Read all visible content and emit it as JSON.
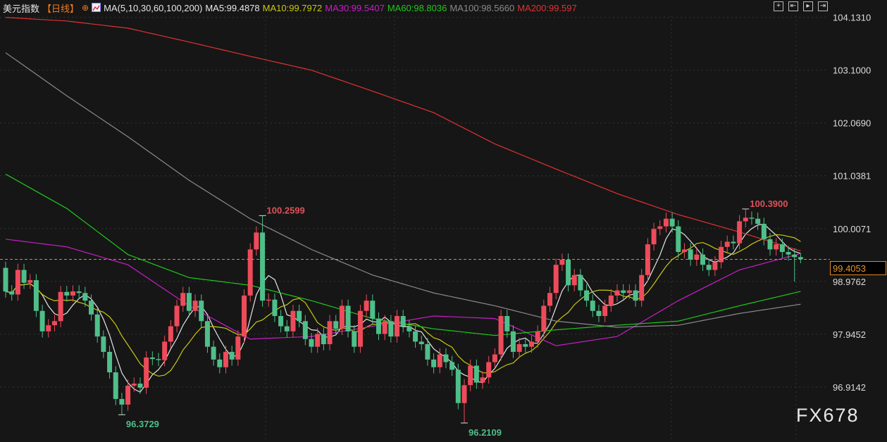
{
  "header": {
    "title": "美元指数",
    "period": "【日线】",
    "ma_group": "MA(5,10,30,60,100,200)",
    "ma_values": [
      {
        "label": "MA5:99.4878",
        "color": "#e6e6e6"
      },
      {
        "label": "MA10:99.7972",
        "color": "#c8c814"
      },
      {
        "label": "MA30:99.5407",
        "color": "#c81ec8"
      },
      {
        "label": "MA60:98.8036",
        "color": "#1ec81e"
      },
      {
        "label": "MA100:98.5660",
        "color": "#8a8a8a"
      },
      {
        "label": "MA200:99.597",
        "color": "#e03232"
      }
    ],
    "icons": [
      "crosshair-icon",
      "step-back-icon",
      "play-icon",
      "jump-end-icon"
    ]
  },
  "current_price": "99.4053",
  "watermark": "FX678",
  "colors": {
    "up": "#ee4b5a",
    "down": "#4fbf8a",
    "background": "#161616",
    "current_line": "#e08a2a"
  },
  "chart_data": {
    "type": "candlestick",
    "title": "美元指数",
    "ylim": [
      95.84,
      104.47
    ],
    "y_ticks": [
      "104.1310",
      "103.1000",
      "102.0690",
      "101.0381",
      "100.0071",
      "98.9762",
      "97.9452",
      "96.9142"
    ],
    "grid": true,
    "annotations": [
      {
        "text": "100.2599",
        "index": 42,
        "value": 100.2599,
        "kind": "high"
      },
      {
        "text": "96.3729",
        "index": 19,
        "value": 96.3729,
        "kind": "low"
      },
      {
        "text": "96.2109",
        "index": 75,
        "value": 96.2109,
        "kind": "low"
      },
      {
        "text": "100.3900",
        "index": 121,
        "value": 100.39,
        "kind": "high"
      }
    ],
    "candles_ohlc": [
      [
        99.24,
        99.36,
        98.66,
        98.78
      ],
      [
        98.78,
        98.9,
        98.6,
        98.72
      ],
      [
        98.72,
        99.32,
        98.6,
        99.2
      ],
      [
        99.2,
        99.32,
        98.83,
        98.95
      ],
      [
        98.95,
        99.12,
        98.83,
        99.0
      ],
      [
        99.0,
        99.12,
        98.28,
        98.4
      ],
      [
        98.4,
        98.52,
        97.88,
        98.0
      ],
      [
        98.0,
        98.24,
        97.88,
        98.12
      ],
      [
        98.12,
        98.32,
        98.0,
        98.2
      ],
      [
        98.2,
        98.89,
        98.08,
        98.77
      ],
      [
        98.77,
        98.89,
        98.58,
        98.7
      ],
      [
        98.7,
        98.9,
        98.58,
        98.78
      ],
      [
        98.78,
        98.9,
        98.63,
        98.75
      ],
      [
        98.75,
        98.87,
        98.48,
        98.6
      ],
      [
        98.6,
        98.72,
        98.21,
        98.33
      ],
      [
        98.33,
        98.45,
        97.78,
        97.9
      ],
      [
        97.9,
        98.02,
        97.48,
        97.6
      ],
      [
        97.6,
        97.72,
        97.08,
        97.2
      ],
      [
        97.2,
        97.32,
        96.56,
        96.68
      ],
      [
        96.68,
        96.8,
        96.37,
        96.57
      ],
      [
        96.57,
        97.06,
        96.45,
        96.94
      ],
      [
        96.94,
        97.1,
        96.82,
        96.98
      ],
      [
        96.98,
        97.1,
        96.78,
        96.9
      ],
      [
        96.9,
        97.61,
        96.78,
        97.49
      ],
      [
        97.49,
        97.61,
        97.34,
        97.46
      ],
      [
        97.46,
        97.58,
        97.32,
        97.44
      ],
      [
        97.44,
        97.92,
        97.32,
        97.8
      ],
      [
        97.8,
        98.22,
        97.68,
        98.1
      ],
      [
        98.1,
        98.62,
        97.98,
        98.5
      ],
      [
        98.5,
        98.87,
        98.38,
        98.75
      ],
      [
        98.75,
        98.87,
        98.28,
        98.4
      ],
      [
        98.4,
        98.72,
        98.28,
        98.6
      ],
      [
        98.6,
        98.72,
        98.08,
        98.2
      ],
      [
        98.2,
        98.32,
        97.58,
        97.7
      ],
      [
        97.7,
        97.82,
        97.33,
        97.45
      ],
      [
        97.45,
        97.57,
        97.18,
        97.3
      ],
      [
        97.3,
        97.72,
        97.18,
        97.6
      ],
      [
        97.6,
        97.72,
        97.33,
        97.45
      ],
      [
        97.45,
        98.02,
        97.33,
        97.9
      ],
      [
        97.9,
        98.82,
        97.78,
        98.7
      ],
      [
        98.7,
        99.72,
        98.58,
        99.6
      ],
      [
        99.6,
        100.05,
        99.48,
        99.93
      ],
      [
        99.93,
        100.26,
        98.48,
        98.6
      ],
      [
        98.6,
        98.74,
        98.48,
        98.62
      ],
      [
        98.62,
        98.74,
        98.18,
        98.3
      ],
      [
        98.3,
        98.42,
        97.98,
        98.1
      ],
      [
        98.1,
        98.22,
        97.88,
        98.0
      ],
      [
        98.0,
        98.52,
        97.88,
        98.4
      ],
      [
        98.4,
        98.52,
        98.08,
        98.2
      ],
      [
        98.2,
        98.32,
        97.73,
        97.85
      ],
      [
        97.85,
        97.97,
        97.58,
        97.7
      ],
      [
        97.7,
        98.07,
        97.58,
        97.95
      ],
      [
        97.95,
        98.07,
        97.63,
        97.75
      ],
      [
        97.75,
        98.32,
        97.63,
        98.2
      ],
      [
        98.2,
        98.32,
        97.93,
        98.05
      ],
      [
        98.05,
        98.62,
        97.93,
        98.5
      ],
      [
        98.5,
        98.62,
        97.88,
        98.0
      ],
      [
        98.0,
        98.12,
        97.58,
        97.7
      ],
      [
        97.7,
        98.52,
        97.58,
        98.4
      ],
      [
        98.4,
        98.72,
        98.28,
        98.6
      ],
      [
        98.6,
        98.72,
        98.13,
        98.25
      ],
      [
        98.25,
        98.37,
        97.83,
        97.95
      ],
      [
        97.95,
        98.32,
        97.83,
        98.2
      ],
      [
        98.2,
        98.32,
        97.78,
        97.9
      ],
      [
        97.9,
        98.42,
        97.78,
        98.3
      ],
      [
        98.3,
        98.42,
        97.98,
        98.1
      ],
      [
        98.1,
        98.22,
        97.88,
        98.0
      ],
      [
        98.0,
        98.12,
        97.68,
        97.8
      ],
      [
        97.8,
        97.92,
        97.63,
        97.75
      ],
      [
        97.75,
        97.87,
        97.33,
        97.45
      ],
      [
        97.45,
        97.57,
        97.18,
        97.3
      ],
      [
        97.3,
        97.67,
        97.18,
        97.55
      ],
      [
        97.55,
        97.67,
        97.28,
        97.4
      ],
      [
        97.4,
        97.52,
        97.13,
        97.25
      ],
      [
        97.25,
        97.37,
        96.48,
        96.6
      ],
      [
        96.6,
        97.07,
        96.21,
        96.95
      ],
      [
        96.95,
        97.45,
        96.83,
        97.33
      ],
      [
        97.33,
        97.45,
        96.88,
        97.0
      ],
      [
        97.0,
        97.22,
        96.88,
        97.1
      ],
      [
        97.1,
        97.52,
        96.98,
        97.4
      ],
      [
        97.4,
        97.67,
        97.28,
        97.55
      ],
      [
        97.55,
        98.42,
        97.43,
        98.3
      ],
      [
        98.3,
        98.42,
        97.88,
        98.0
      ],
      [
        98.0,
        98.12,
        97.48,
        97.6
      ],
      [
        97.6,
        97.87,
        97.48,
        97.75
      ],
      [
        97.75,
        97.87,
        97.58,
        97.7
      ],
      [
        97.7,
        97.92,
        97.58,
        97.8
      ],
      [
        97.8,
        98.12,
        97.68,
        98.0
      ],
      [
        98.0,
        98.62,
        97.88,
        98.5
      ],
      [
        98.5,
        98.87,
        98.38,
        98.75
      ],
      [
        98.75,
        99.42,
        98.63,
        99.3
      ],
      [
        99.3,
        99.52,
        99.18,
        99.4
      ],
      [
        99.4,
        99.52,
        98.78,
        98.9
      ],
      [
        98.9,
        99.22,
        98.78,
        99.1
      ],
      [
        99.1,
        99.22,
        98.68,
        98.8
      ],
      [
        98.8,
        98.92,
        98.48,
        98.6
      ],
      [
        98.6,
        98.72,
        98.28,
        98.4
      ],
      [
        98.4,
        98.52,
        98.18,
        98.3
      ],
      [
        98.3,
        98.62,
        98.18,
        98.5
      ],
      [
        98.5,
        98.82,
        98.38,
        98.7
      ],
      [
        98.7,
        98.92,
        98.58,
        98.8
      ],
      [
        98.8,
        98.92,
        98.63,
        98.75
      ],
      [
        98.75,
        98.92,
        98.63,
        98.8
      ],
      [
        98.8,
        98.92,
        98.48,
        98.6
      ],
      [
        98.6,
        99.22,
        98.48,
        99.1
      ],
      [
        99.1,
        99.82,
        98.98,
        99.7
      ],
      [
        99.7,
        100.12,
        99.58,
        100.0
      ],
      [
        100.0,
        100.17,
        99.88,
        100.05
      ],
      [
        100.05,
        100.32,
        99.93,
        100.2
      ],
      [
        100.2,
        100.32,
        99.93,
        100.05
      ],
      [
        100.05,
        100.17,
        99.43,
        99.55
      ],
      [
        99.55,
        99.72,
        99.43,
        99.6
      ],
      [
        99.6,
        99.72,
        99.28,
        99.4
      ],
      [
        99.4,
        99.62,
        99.28,
        99.5
      ],
      [
        99.5,
        99.62,
        99.18,
        99.3
      ],
      [
        99.3,
        99.42,
        99.08,
        99.2
      ],
      [
        99.2,
        99.47,
        99.08,
        99.35
      ],
      [
        99.35,
        99.77,
        99.23,
        99.65
      ],
      [
        99.65,
        99.87,
        99.53,
        99.75
      ],
      [
        99.75,
        99.87,
        99.6,
        99.72
      ],
      [
        99.72,
        100.27,
        99.6,
        100.15
      ],
      [
        100.15,
        100.39,
        100.03,
        100.22
      ],
      [
        100.22,
        100.34,
        100.08,
        100.2
      ],
      [
        100.2,
        100.32,
        99.98,
        100.1
      ],
      [
        100.1,
        100.22,
        99.68,
        99.8
      ],
      [
        99.8,
        99.92,
        99.48,
        99.6
      ],
      [
        99.6,
        99.82,
        99.48,
        99.7
      ],
      [
        99.7,
        99.82,
        99.43,
        99.55
      ],
      [
        99.55,
        99.67,
        99.38,
        99.5
      ],
      [
        99.5,
        99.62,
        98.97,
        99.45
      ],
      [
        99.45,
        99.52,
        99.33,
        99.41
      ]
    ],
    "moving_averages": [
      {
        "name": "MA5",
        "period": 5,
        "color": "#e6e6e6"
      },
      {
        "name": "MA10",
        "period": 10,
        "color": "#c8c814"
      },
      {
        "name": "MA30",
        "color": "#c81ec8",
        "index": [
          0,
          10,
          20,
          30,
          40,
          50,
          60,
          70,
          80,
          90,
          100,
          110,
          120,
          130
        ],
        "values": [
          99.8,
          99.65,
          99.3,
          98.5,
          97.85,
          97.9,
          98.1,
          98.3,
          98.25,
          97.72,
          97.9,
          98.6,
          99.2,
          99.52
        ]
      },
      {
        "name": "MA60",
        "color": "#1ec81e",
        "index": [
          0,
          10,
          20,
          30,
          40,
          50,
          60,
          70,
          80,
          90,
          100,
          110,
          120,
          130
        ],
        "values": [
          101.07,
          100.4,
          99.5,
          99.05,
          98.9,
          98.6,
          98.25,
          98.05,
          97.92,
          98.03,
          98.12,
          98.2,
          98.5,
          98.78
        ]
      },
      {
        "name": "MA100",
        "color": "#8a8a8a",
        "index": [
          0,
          10,
          20,
          30,
          40,
          50,
          60,
          70,
          80,
          90,
          100,
          110,
          120,
          130
        ],
        "values": [
          103.44,
          102.6,
          101.8,
          100.95,
          100.2,
          99.6,
          99.1,
          98.75,
          98.5,
          98.2,
          98.08,
          98.12,
          98.35,
          98.53
        ]
      },
      {
        "name": "MA200",
        "color": "#e03232",
        "index": [
          0,
          10,
          20,
          30,
          40,
          50,
          60,
          70,
          80,
          90,
          100,
          110,
          120,
          130
        ],
        "values": [
          104.13,
          104.06,
          103.92,
          103.65,
          103.37,
          103.1,
          102.69,
          102.27,
          101.66,
          101.17,
          100.69,
          100.28,
          99.94,
          99.57
        ]
      }
    ]
  }
}
